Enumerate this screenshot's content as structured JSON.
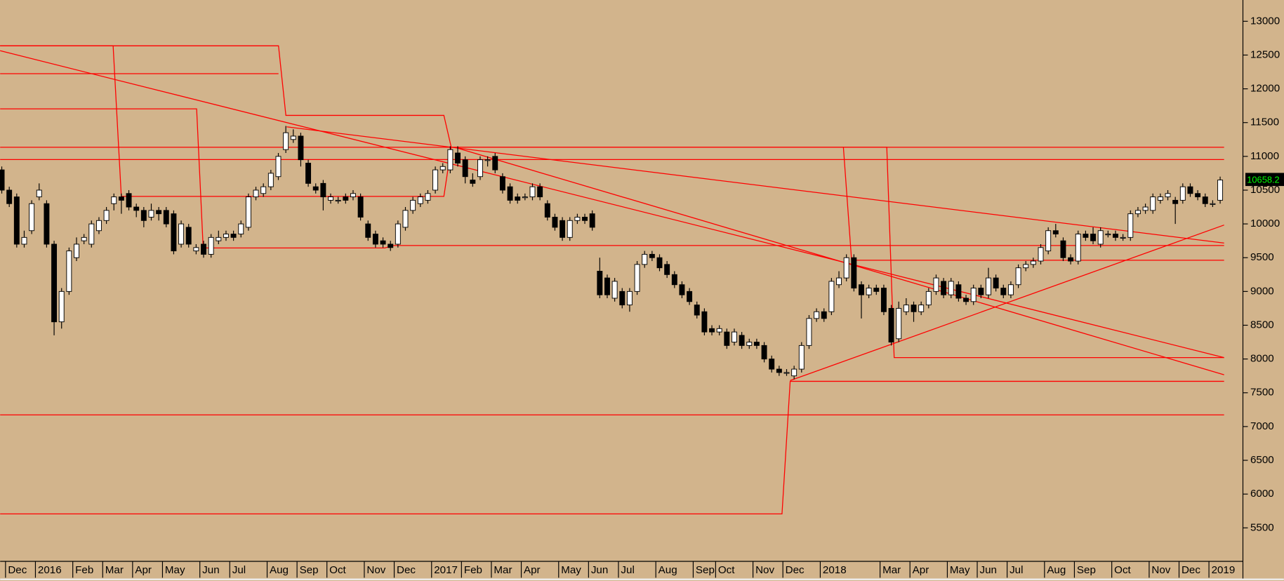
{
  "chart_data": {
    "type": "candlestick",
    "categories": [
      null,
      "Dec",
      null,
      null,
      null,
      "2016",
      null,
      null,
      null,
      null,
      "Feb",
      null,
      null,
      null,
      "Mar",
      null,
      null,
      null,
      "Apr",
      null,
      null,
      null,
      "May",
      null,
      null,
      null,
      null,
      "Jun",
      null,
      null,
      null,
      "Jul",
      null,
      null,
      null,
      null,
      "Aug",
      null,
      null,
      null,
      "Sep",
      null,
      null,
      null,
      "Oct",
      null,
      null,
      null,
      null,
      "Nov",
      null,
      null,
      null,
      "Dec",
      null,
      null,
      null,
      null,
      "2017",
      null,
      null,
      null,
      "Feb",
      null,
      null,
      null,
      "Mar",
      null,
      null,
      null,
      "Apr",
      null,
      null,
      null,
      null,
      "May",
      null,
      null,
      null,
      "Jun",
      null,
      null,
      null,
      "Jul",
      null,
      null,
      null,
      null,
      "Aug",
      null,
      null,
      null,
      null,
      "Sep",
      null,
      null,
      "Oct",
      null,
      null,
      null,
      null,
      "Nov",
      null,
      null,
      null,
      "Dec",
      null,
      null,
      null,
      null,
      "2018",
      null,
      null,
      null,
      null,
      null,
      null,
      null,
      "Mar",
      null,
      null,
      null,
      "Apr",
      null,
      null,
      null,
      null,
      "May",
      null,
      null,
      null,
      "Jun",
      null,
      null,
      null,
      "Jul",
      null,
      null,
      null,
      null,
      "Aug",
      null,
      null,
      null,
      "Sep",
      null,
      null,
      null,
      null,
      "Oct",
      null,
      null,
      null,
      null,
      "Nov",
      null,
      null,
      null,
      "Dec",
      null,
      null,
      null,
      "2019",
      null
    ],
    "open": [
      10800,
      10500,
      10400,
      9700,
      9900,
      10400,
      10300,
      9700,
      8550,
      9000,
      9500,
      9750,
      9700,
      9900,
      10050,
      10300,
      10400,
      10450,
      10250,
      10200,
      10100,
      10200,
      10200,
      10150,
      9700,
      9950,
      9600,
      9700,
      9550,
      9750,
      9800,
      9850,
      9850,
      9950,
      10400,
      10450,
      10550,
      10700,
      11100,
      11250,
      11300,
      10900,
      10550,
      10600,
      10350,
      10350,
      10400,
      10400,
      10400,
      10000,
      9850,
      9750,
      9700,
      9700,
      9950,
      10200,
      10300,
      10350,
      10500,
      10800,
      10800,
      11050,
      10950,
      10650,
      10700,
      10950,
      11000,
      10700,
      10550,
      10400,
      10400,
      10400,
      10550,
      10300,
      10100,
      10050,
      9800,
      10050,
      10100,
      10150,
      9300,
      9200,
      8900,
      9000,
      8800,
      9000,
      9400,
      9550,
      9500,
      9400,
      9250,
      9100,
      9000,
      8800,
      8700,
      8450,
      8400,
      8400,
      8250,
      8350,
      8200,
      8250,
      8200,
      8000,
      7850,
      7800,
      7750,
      7850,
      8200,
      8600,
      8700,
      8700,
      9100,
      9200,
      9500,
      9100,
      8950,
      9050,
      9050,
      8750,
      8300,
      8700,
      8800,
      8700,
      8800,
      9000,
      9150,
      8950,
      9100,
      8900,
      8850,
      9050,
      8950,
      9200,
      9050,
      8950,
      9100,
      9350,
      9400,
      9450,
      9600,
      9900,
      9750,
      9500,
      9450,
      9850,
      9850,
      9700,
      9850,
      9850,
      9800,
      9800,
      10150,
      10200,
      10200,
      10350,
      10400,
      10350,
      10350,
      10550,
      10450,
      10400,
      10300,
      10350
    ],
    "high": [
      10850,
      10550,
      10450,
      9900,
      10350,
      10600,
      10350,
      9750,
      9050,
      9650,
      9800,
      9850,
      10050,
      10100,
      10250,
      10450,
      10450,
      10500,
      10300,
      10250,
      10300,
      10250,
      10250,
      10200,
      10050,
      10000,
      9700,
      9750,
      9850,
      9900,
      9900,
      9900,
      10050,
      10450,
      10550,
      10600,
      10800,
      11050,
      11450,
      11400,
      11350,
      10950,
      10600,
      10650,
      10450,
      10400,
      10450,
      10500,
      10450,
      10050,
      9900,
      9800,
      9750,
      10050,
      10250,
      10400,
      10450,
      10500,
      10850,
      10900,
      11150,
      11150,
      11000,
      10750,
      11000,
      11000,
      11050,
      10750,
      10600,
      10450,
      10450,
      10600,
      10600,
      10350,
      10150,
      10100,
      10100,
      10150,
      10150,
      10200,
      9500,
      9250,
      9200,
      9050,
      9050,
      9450,
      9600,
      9600,
      9550,
      9450,
      9300,
      9150,
      9050,
      8850,
      8750,
      8500,
      8500,
      8450,
      8450,
      8400,
      8300,
      8300,
      8250,
      8050,
      7900,
      7850,
      7900,
      8250,
      8650,
      8750,
      8750,
      9200,
      9300,
      9550,
      9550,
      9150,
      9100,
      9100,
      9100,
      8800,
      8850,
      8900,
      8850,
      8850,
      9050,
      9250,
      9200,
      9200,
      9150,
      8950,
      9100,
      9100,
      9350,
      9250,
      9100,
      9150,
      9400,
      9450,
      9500,
      9700,
      9950,
      10000,
      9800,
      9550,
      9900,
      9900,
      9950,
      9950,
      9900,
      9900,
      9850,
      10200,
      10250,
      10300,
      10450,
      10450,
      10500,
      10400,
      10600,
      10600,
      10500,
      10450,
      10350,
      10700
    ],
    "low": [
      10450,
      10250,
      9650,
      9650,
      9850,
      10350,
      9650,
      8350,
      8450,
      8950,
      9450,
      9700,
      9650,
      9850,
      10000,
      10200,
      10150,
      10200,
      10100,
      9950,
      10050,
      10050,
      9950,
      9550,
      9650,
      9650,
      9550,
      9500,
      9500,
      9700,
      9750,
      9750,
      9800,
      9900,
      10350,
      10400,
      10500,
      10650,
      11050,
      11200,
      10850,
      10550,
      10450,
      10200,
      10300,
      10300,
      10300,
      10350,
      10050,
      9750,
      9650,
      9650,
      9600,
      9650,
      9900,
      10150,
      10250,
      10300,
      10450,
      10750,
      10750,
      10850,
      10600,
      10550,
      10650,
      10850,
      10750,
      10450,
      10300,
      10300,
      10350,
      10350,
      10350,
      10050,
      9900,
      9750,
      9750,
      10000,
      10000,
      9900,
      8900,
      8900,
      8850,
      8750,
      8700,
      8950,
      9350,
      9450,
      9300,
      9200,
      9050,
      8900,
      8800,
      8600,
      8350,
      8350,
      8350,
      8150,
      8200,
      8150,
      8150,
      8150,
      7950,
      7800,
      7750,
      7750,
      7700,
      7800,
      8150,
      8550,
      8550,
      8650,
      9050,
      9150,
      9000,
      8600,
      8900,
      8950,
      8650,
      8200,
      8250,
      8650,
      8550,
      8650,
      8750,
      8950,
      8900,
      8900,
      8850,
      8800,
      8800,
      8900,
      8900,
      9000,
      8900,
      8900,
      9050,
      9300,
      9350,
      9400,
      9550,
      9800,
      9450,
      9400,
      9400,
      9750,
      9700,
      9650,
      9800,
      9750,
      9750,
      9750,
      10100,
      10150,
      10150,
      10300,
      10350,
      10000,
      10300,
      10400,
      10350,
      10250,
      10250,
      10300
    ],
    "close": [
      10500,
      10300,
      9700,
      9800,
      10300,
      10500,
      9700,
      8550,
      9000,
      9600,
      9700,
      9800,
      10000,
      10050,
      10200,
      10400,
      10350,
      10250,
      10200,
      10050,
      10200,
      10150,
      10000,
      9600,
      10000,
      9700,
      9650,
      9550,
      9800,
      9800,
      9850,
      9800,
      10000,
      10400,
      10500,
      10550,
      10750,
      11000,
      11350,
      11300,
      10950,
      10600,
      10500,
      10400,
      10400,
      10350,
      10350,
      10450,
      10100,
      9800,
      9700,
      9700,
      9650,
      10000,
      10200,
      10350,
      10400,
      10450,
      10800,
      10850,
      11100,
      10900,
      10700,
      10600,
      10950,
      10950,
      10800,
      10500,
      10350,
      10350,
      10400,
      10550,
      10400,
      10100,
      9950,
      9800,
      10050,
      10100,
      10050,
      9950,
      8950,
      8950,
      9150,
      8800,
      9000,
      9400,
      9550,
      9500,
      9350,
      9250,
      9100,
      8950,
      8850,
      8650,
      8400,
      8400,
      8450,
      8200,
      8400,
      8200,
      8250,
      8200,
      8000,
      7850,
      7800,
      7800,
      7850,
      8200,
      8600,
      8700,
      8600,
      9150,
      9200,
      9500,
      9050,
      8950,
      9050,
      9000,
      8700,
      8250,
      8750,
      8800,
      8700,
      8800,
      9000,
      9200,
      8950,
      9150,
      8900,
      8850,
      9050,
      8950,
      9200,
      9050,
      8950,
      9100,
      9350,
      9400,
      9450,
      9650,
      9900,
      9850,
      9500,
      9450,
      9850,
      9800,
      9750,
      9900,
      9850,
      9800,
      9800,
      10150,
      10200,
      10250,
      10400,
      10400,
      10450,
      10300,
      10550,
      10450,
      10400,
      10300,
      10300,
      10650
    ],
    "up_color": "#ffffff",
    "down_color": "#000000",
    "ylim": [
      5004,
      13315
    ],
    "yticks": [
      5500,
      6000,
      6500,
      7000,
      7500,
      8000,
      8500,
      9000,
      9500,
      10000,
      10500,
      11000,
      11500,
      12000,
      12500,
      13000
    ],
    "last_price": 10658.2
  }
}
